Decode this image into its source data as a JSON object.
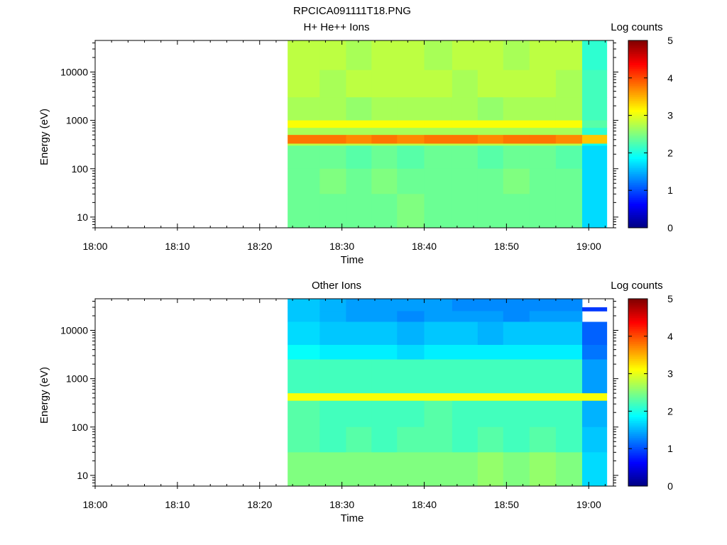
{
  "figure_title": "RPCICA091111T18.PNG",
  "chart_data": [
    {
      "type": "heatmap",
      "title": "H+ He++ Ions",
      "xlabel": "Time",
      "ylabel": "Energy (eV)",
      "x_ticks": [
        "18:00",
        "18:10",
        "18:20",
        "18:30",
        "18:40",
        "18:50",
        "19:00"
      ],
      "x_range_minutes": [
        0,
        63
      ],
      "y_scale": "log",
      "y_range": [
        6,
        45000
      ],
      "y_ticks": [
        "10",
        "100",
        "1000",
        "10000"
      ],
      "y_tick_values": [
        10,
        100,
        1000,
        10000
      ],
      "colorbar": {
        "label": "Log counts",
        "range": [
          0,
          5
        ],
        "ticks": [
          "0",
          "1",
          "2",
          "3",
          "4",
          "5"
        ]
      },
      "data_start_minute": 23.4,
      "data_end_minute": 62.2,
      "time_edges_minutes": [
        23.4,
        27.3,
        30.5,
        33.6,
        36.7,
        40.0,
        43.4,
        46.5,
        49.6,
        52.8,
        56.0,
        59.2,
        62.2
      ],
      "energy_bands": [
        {
          "range_eV": [
            11000,
            45000
          ],
          "values": [
            2.8,
            2.8,
            2.7,
            2.8,
            2.8,
            2.7,
            2.8,
            2.8,
            2.7,
            2.8,
            2.8,
            2.1
          ]
        },
        {
          "range_eV": [
            3000,
            11000
          ],
          "values": [
            2.8,
            2.7,
            2.8,
            2.8,
            2.8,
            2.8,
            2.7,
            2.8,
            2.8,
            2.8,
            2.7,
            2.2
          ]
        },
        {
          "range_eV": [
            1000,
            3000
          ],
          "values": [
            2.7,
            2.7,
            2.6,
            2.7,
            2.7,
            2.7,
            2.7,
            2.6,
            2.7,
            2.7,
            2.7,
            2.2
          ]
        },
        {
          "range_eV": [
            700,
            1000
          ],
          "values": [
            3.1,
            3.1,
            3.1,
            3.1,
            3.1,
            3.1,
            3.1,
            3.1,
            3.1,
            3.1,
            3.1,
            2.3
          ]
        },
        {
          "range_eV": [
            500,
            700
          ],
          "values": [
            2.7,
            2.7,
            2.7,
            2.7,
            2.7,
            2.7,
            2.7,
            2.7,
            2.7,
            2.7,
            2.7,
            2.1
          ]
        },
        {
          "range_eV": [
            330,
            500
          ],
          "values": [
            3.8,
            3.8,
            3.7,
            3.8,
            3.7,
            3.8,
            3.8,
            3.7,
            3.8,
            3.8,
            3.7,
            3.4
          ]
        },
        {
          "range_eV": [
            300,
            330
          ],
          "values": [
            2.8,
            2.8,
            2.8,
            2.8,
            2.8,
            2.8,
            2.8,
            2.8,
            2.8,
            2.8,
            2.8,
            1.9
          ]
        },
        {
          "range_eV": [
            100,
            300
          ],
          "values": [
            2.4,
            2.4,
            2.3,
            2.4,
            2.3,
            2.4,
            2.4,
            2.3,
            2.4,
            2.4,
            2.3,
            1.7
          ]
        },
        {
          "range_eV": [
            30,
            100
          ],
          "values": [
            2.4,
            2.5,
            2.4,
            2.5,
            2.4,
            2.4,
            2.4,
            2.4,
            2.5,
            2.4,
            2.4,
            1.7
          ]
        },
        {
          "range_eV": [
            6,
            30
          ],
          "values": [
            2.4,
            2.4,
            2.4,
            2.4,
            2.5,
            2.4,
            2.4,
            2.4,
            2.4,
            2.4,
            2.4,
            1.7
          ]
        }
      ]
    },
    {
      "type": "heatmap",
      "title": "Other Ions",
      "xlabel": "Time",
      "ylabel": "Energy (eV)",
      "x_ticks": [
        "18:00",
        "18:10",
        "18:20",
        "18:30",
        "18:40",
        "18:50",
        "19:00"
      ],
      "x_range_minutes": [
        0,
        63
      ],
      "y_scale": "log",
      "y_range": [
        6,
        45000
      ],
      "y_ticks": [
        "10",
        "100",
        "1000",
        "10000"
      ],
      "y_tick_values": [
        10,
        100,
        1000,
        10000
      ],
      "colorbar": {
        "label": "Log counts",
        "range": [
          0,
          5
        ],
        "ticks": [
          "0",
          "1",
          "2",
          "3",
          "4",
          "5"
        ]
      },
      "data_start_minute": 23.4,
      "data_end_minute": 62.2,
      "time_edges_minutes": [
        23.4,
        27.3,
        30.5,
        33.6,
        36.7,
        40.0,
        43.4,
        46.5,
        49.6,
        52.8,
        56.0,
        59.2,
        62.2
      ],
      "energy_bands": [
        {
          "range_eV": [
            30000,
            45000
          ],
          "values": [
            1.6,
            1.5,
            1.4,
            1.4,
            1.4,
            1.4,
            1.3,
            1.3,
            1.3,
            1.3,
            1.3,
            null
          ]
        },
        {
          "range_eV": [
            25000,
            30000
          ],
          "values": [
            1.6,
            1.5,
            1.4,
            1.4,
            1.4,
            1.4,
            1.3,
            1.3,
            1.3,
            1.3,
            1.3,
            0.9
          ]
        },
        {
          "range_eV": [
            15000,
            25000
          ],
          "values": [
            1.6,
            1.5,
            1.4,
            1.4,
            1.3,
            1.4,
            1.4,
            1.4,
            1.3,
            1.4,
            1.4,
            null
          ]
        },
        {
          "range_eV": [
            5000,
            15000
          ],
          "values": [
            1.7,
            1.6,
            1.6,
            1.6,
            1.5,
            1.6,
            1.6,
            1.5,
            1.6,
            1.6,
            1.6,
            1.1
          ]
        },
        {
          "range_eV": [
            2500,
            5000
          ],
          "values": [
            1.9,
            1.8,
            1.8,
            1.8,
            1.7,
            1.8,
            1.8,
            1.8,
            1.8,
            1.8,
            1.8,
            1.2
          ]
        },
        {
          "range_eV": [
            500,
            2500
          ],
          "values": [
            2.2,
            2.2,
            2.2,
            2.2,
            2.2,
            2.2,
            2.2,
            2.2,
            2.2,
            2.2,
            2.2,
            1.4
          ]
        },
        {
          "range_eV": [
            350,
            500
          ],
          "values": [
            3.1,
            3.1,
            3.1,
            3.1,
            3.1,
            3.1,
            3.1,
            3.1,
            3.1,
            3.1,
            3.1,
            3.1
          ]
        },
        {
          "range_eV": [
            100,
            350
          ],
          "values": [
            2.3,
            2.2,
            2.2,
            2.2,
            2.2,
            2.3,
            2.2,
            2.2,
            2.2,
            2.2,
            2.2,
            1.5
          ]
        },
        {
          "range_eV": [
            30,
            100
          ],
          "values": [
            2.3,
            2.2,
            2.3,
            2.2,
            2.3,
            2.3,
            2.2,
            2.3,
            2.2,
            2.3,
            2.2,
            1.6
          ]
        },
        {
          "range_eV": [
            6,
            30
          ],
          "values": [
            2.5,
            2.5,
            2.5,
            2.5,
            2.5,
            2.5,
            2.5,
            2.6,
            2.5,
            2.6,
            2.5,
            1.7
          ]
        }
      ]
    }
  ]
}
